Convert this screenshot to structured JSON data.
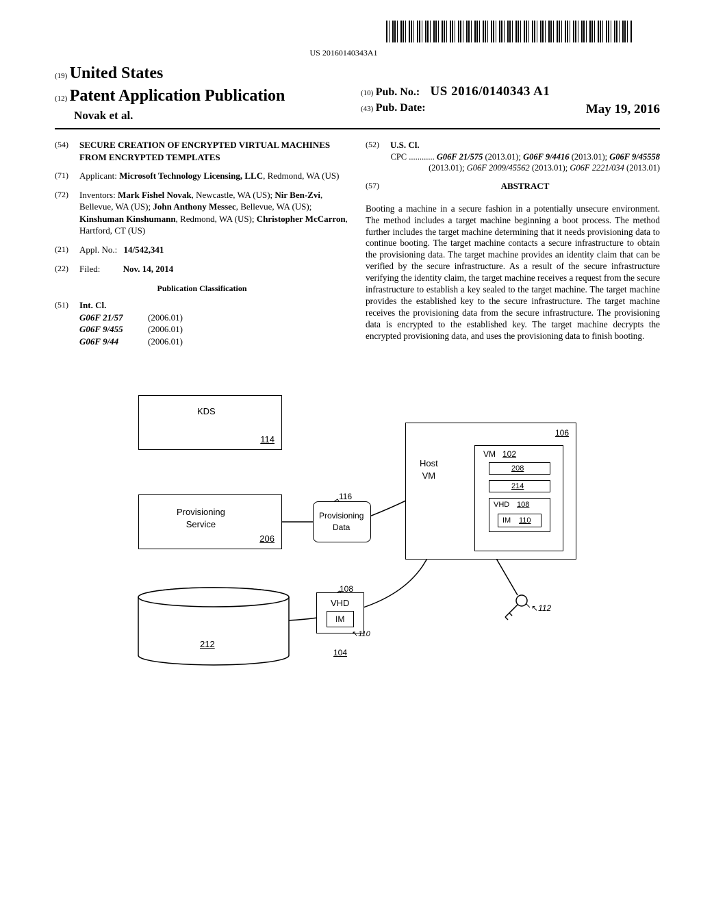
{
  "barcode_text": "US 20160140343A1",
  "header": {
    "prefix_19": "(19)",
    "country": "United States",
    "prefix_12": "(12)",
    "pub_type": "Patent Application Publication",
    "authors": "Novak et al.",
    "prefix_10": "(10)",
    "pub_no_label": "Pub. No.:",
    "pub_no": "US 2016/0140343 A1",
    "prefix_43": "(43)",
    "pub_date_label": "Pub. Date:",
    "pub_date": "May 19, 2016"
  },
  "sections": {
    "title_num": "(54)",
    "title": "SECURE CREATION OF ENCRYPTED VIRTUAL MACHINES FROM ENCRYPTED TEMPLATES",
    "applicant_num": "(71)",
    "applicant_label": "Applicant:",
    "applicant": "Microsoft Technology Licensing, LLC",
    "applicant_loc": ", Redmond, WA (US)",
    "inventors_num": "(72)",
    "inventors_label": "Inventors:",
    "inventors_html": "<span class='inventor-name'>Mark Fishel Novak</span>, Newcastle, WA (US); <span class='inventor-name'>Nir Ben-Zvi</span>, Bellevue, WA (US); <span class='inventor-name'>John Anthony Messec</span>, Bellevue, WA (US); <span class='inventor-name'>Kinshuman Kinshumann</span>, Redmond, WA (US); <span class='inventor-name'>Christopher McCarron</span>, Hartford, CT (US)",
    "appl_num": "(21)",
    "appl_label": "Appl. No.:",
    "appl_value": "14/542,341",
    "filed_num": "(22)",
    "filed_label": "Filed:",
    "filed_value": "Nov. 14, 2014",
    "pub_class_heading": "Publication Classification",
    "intcl_num": "(51)",
    "intcl_label": "Int. Cl.",
    "intcl_rows": [
      {
        "code": "G06F 21/57",
        "year": "(2006.01)"
      },
      {
        "code": "G06F 9/455",
        "year": "(2006.01)"
      },
      {
        "code": "G06F 9/44",
        "year": "(2006.01)"
      }
    ],
    "uscl_num": "(52)",
    "uscl_label": "U.S. Cl.",
    "cpc_prefix": "CPC ............",
    "cpc_parts": [
      {
        "code": "G06F 21/575",
        "year": "(2013.01)"
      },
      {
        "code": "G06F 9/4416",
        "year": "(2013.01)"
      },
      {
        "code": "G06F 9/45558",
        "year": "(2013.01)"
      },
      {
        "code": "G06F 2009/45562",
        "year": "(2013.01)",
        "italic_only": true
      },
      {
        "code": "G06F 2221/034",
        "year": "(2013.01)",
        "italic_only": true
      }
    ],
    "abstract_num": "(57)",
    "abstract_heading": "ABSTRACT",
    "abstract": "Booting a machine in a secure fashion in a potentially unsecure environment. The method includes a target machine beginning a boot process. The method further includes the target machine determining that it needs provisioning data to continue booting. The target machine contacts a secure infrastructure to obtain the provisioning data. The target machine provides an identity claim that can be verified by the secure infrastructure. As a result of the secure infrastructure verifying the identity claim, the target machine receives a request from the secure infrastructure to establish a key sealed to the target machine. The target machine provides the established key to the secure infrastructure. The target machine receives the provisioning data from the secure infrastructure. The provisioning data is encrypted to the established key. The target machine decrypts the encrypted provisioning data, and uses the provisioning data to finish booting."
  },
  "diagram": {
    "kds": "KDS",
    "kds_ref": "114",
    "prov_service": "Provisioning\nService",
    "prov_service_ref": "206",
    "prov_data": "Provisioning\nData",
    "prov_data_ref": "116",
    "cylinder_ref": "212",
    "vhd": "VHD",
    "vhd_ref": "108",
    "im": "IM",
    "im_ref": "110",
    "cyl_bottom_ref": "104",
    "host_vm": "Host\nVM",
    "host_ref": "106",
    "vm": "VM",
    "vm_ref": "102",
    "box_208": "208",
    "box_214": "214",
    "vhd2": "VHD",
    "vhd2_ref": "108",
    "im2": "IM",
    "im2_ref": "110",
    "key_ref": "112"
  }
}
